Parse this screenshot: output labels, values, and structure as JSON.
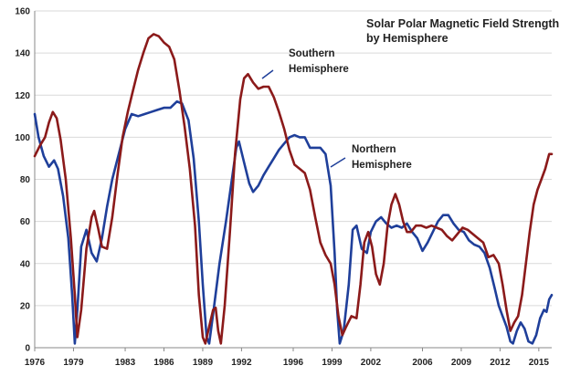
{
  "chart_data": {
    "type": "line",
    "title": [
      "Solar Polar Magnetic Field Strength",
      "by Hemisphere"
    ],
    "xlabel": "",
    "ylabel": "",
    "xlim": [
      1976,
      2016
    ],
    "ylim": [
      0,
      160
    ],
    "x_ticks": [
      1976,
      1979,
      1983,
      1986,
      1989,
      1992,
      1996,
      1999,
      2002,
      2006,
      2009,
      2012,
      2015
    ],
    "y_ticks": [
      0,
      20,
      40,
      60,
      80,
      100,
      120,
      140,
      160
    ],
    "grid": "horizontal",
    "series": [
      {
        "name": "Northern Hemisphere",
        "color": "#1f3f9a",
        "label_lines": [
          "Northern",
          "Hemisphere"
        ],
        "points": [
          [
            1976.0,
            111
          ],
          [
            1976.3,
            100
          ],
          [
            1976.7,
            91
          ],
          [
            1977.1,
            86
          ],
          [
            1977.5,
            89
          ],
          [
            1977.8,
            85
          ],
          [
            1978.2,
            72
          ],
          [
            1978.6,
            52
          ],
          [
            1978.9,
            25
          ],
          [
            1979.1,
            2
          ],
          [
            1979.3,
            18
          ],
          [
            1979.6,
            48
          ],
          [
            1980.0,
            56
          ],
          [
            1980.4,
            45
          ],
          [
            1980.8,
            41
          ],
          [
            1981.2,
            52
          ],
          [
            1981.6,
            67
          ],
          [
            1982.0,
            80
          ],
          [
            1982.5,
            92
          ],
          [
            1983.0,
            104
          ],
          [
            1983.5,
            111
          ],
          [
            1984.0,
            110
          ],
          [
            1984.5,
            111
          ],
          [
            1985.0,
            112
          ],
          [
            1985.5,
            113
          ],
          [
            1986.0,
            114
          ],
          [
            1986.5,
            114
          ],
          [
            1987.0,
            117
          ],
          [
            1987.4,
            116
          ],
          [
            1987.9,
            108
          ],
          [
            1988.3,
            90
          ],
          [
            1988.7,
            60
          ],
          [
            1989.0,
            30
          ],
          [
            1989.3,
            5
          ],
          [
            1989.5,
            2
          ],
          [
            1989.8,
            16
          ],
          [
            1990.3,
            40
          ],
          [
            1990.8,
            60
          ],
          [
            1991.3,
            82
          ],
          [
            1991.6,
            95
          ],
          [
            1991.8,
            98
          ],
          [
            1992.2,
            88
          ],
          [
            1992.6,
            78
          ],
          [
            1992.9,
            74
          ],
          [
            1993.3,
            77
          ],
          [
            1993.7,
            82
          ],
          [
            1994.1,
            86
          ],
          [
            1994.5,
            90
          ],
          [
            1994.9,
            94
          ],
          [
            1995.3,
            97
          ],
          [
            1995.7,
            100
          ],
          [
            1996.1,
            101
          ],
          [
            1996.5,
            100
          ],
          [
            1996.9,
            100
          ],
          [
            1997.3,
            95
          ],
          [
            1997.7,
            95
          ],
          [
            1998.1,
            95
          ],
          [
            1998.5,
            92
          ],
          [
            1998.9,
            77
          ],
          [
            1999.2,
            45
          ],
          [
            1999.4,
            18
          ],
          [
            1999.6,
            2
          ],
          [
            1999.9,
            8
          ],
          [
            2000.3,
            30
          ],
          [
            2000.6,
            56
          ],
          [
            2000.9,
            58
          ],
          [
            2001.3,
            47
          ],
          [
            2001.7,
            45
          ],
          [
            2002.0,
            55
          ],
          [
            2002.4,
            60
          ],
          [
            2002.8,
            62
          ],
          [
            2003.2,
            59
          ],
          [
            2003.6,
            57
          ],
          [
            2004.0,
            58
          ],
          [
            2004.4,
            57
          ],
          [
            2004.8,
            59
          ],
          [
            2005.2,
            55
          ],
          [
            2005.6,
            52
          ],
          [
            2006.0,
            46
          ],
          [
            2006.4,
            50
          ],
          [
            2006.8,
            55
          ],
          [
            2007.2,
            60
          ],
          [
            2007.6,
            63
          ],
          [
            2008.0,
            63
          ],
          [
            2008.4,
            59
          ],
          [
            2008.8,
            56
          ],
          [
            2009.2,
            55
          ],
          [
            2009.6,
            51
          ],
          [
            2010.0,
            49
          ],
          [
            2010.4,
            48
          ],
          [
            2010.8,
            45
          ],
          [
            2011.2,
            38
          ],
          [
            2011.6,
            28
          ],
          [
            2011.9,
            20
          ],
          [
            2012.2,
            15
          ],
          [
            2012.5,
            10
          ],
          [
            2012.8,
            3
          ],
          [
            2013.0,
            2
          ],
          [
            2013.3,
            8
          ],
          [
            2013.6,
            12
          ],
          [
            2013.9,
            9
          ],
          [
            2014.2,
            3
          ],
          [
            2014.5,
            2
          ],
          [
            2014.8,
            6
          ],
          [
            2015.1,
            14
          ],
          [
            2015.4,
            18
          ],
          [
            2015.6,
            17
          ],
          [
            2015.8,
            23
          ],
          [
            2016.0,
            25
          ]
        ]
      },
      {
        "name": "Southern Hemisphere",
        "color": "#8b1a1a",
        "label_lines": [
          "Southern",
          "Hemisphere"
        ],
        "points": [
          [
            1976.0,
            91
          ],
          [
            1976.4,
            96
          ],
          [
            1976.8,
            100
          ],
          [
            1977.1,
            107
          ],
          [
            1977.4,
            112
          ],
          [
            1977.7,
            109
          ],
          [
            1978.0,
            99
          ],
          [
            1978.4,
            80
          ],
          [
            1978.8,
            52
          ],
          [
            1979.1,
            25
          ],
          [
            1979.3,
            5
          ],
          [
            1979.6,
            18
          ],
          [
            1980.0,
            47
          ],
          [
            1980.4,
            62
          ],
          [
            1980.6,
            65
          ],
          [
            1980.9,
            57
          ],
          [
            1981.2,
            48
          ],
          [
            1981.6,
            47
          ],
          [
            1982.0,
            62
          ],
          [
            1982.4,
            82
          ],
          [
            1982.8,
            100
          ],
          [
            1983.2,
            112
          ],
          [
            1983.6,
            122
          ],
          [
            1984.0,
            132
          ],
          [
            1984.4,
            140
          ],
          [
            1984.8,
            147
          ],
          [
            1985.2,
            149
          ],
          [
            1985.6,
            148
          ],
          [
            1986.0,
            145
          ],
          [
            1986.4,
            143
          ],
          [
            1986.8,
            137
          ],
          [
            1987.2,
            122
          ],
          [
            1987.6,
            105
          ],
          [
            1988.0,
            85
          ],
          [
            1988.4,
            58
          ],
          [
            1988.7,
            25
          ],
          [
            1989.0,
            5
          ],
          [
            1989.2,
            2
          ],
          [
            1989.5,
            10
          ],
          [
            1989.8,
            18
          ],
          [
            1990.0,
            19
          ],
          [
            1990.2,
            8
          ],
          [
            1990.4,
            2
          ],
          [
            1990.7,
            20
          ],
          [
            1991.1,
            55
          ],
          [
            1991.5,
            92
          ],
          [
            1991.9,
            118
          ],
          [
            1992.2,
            128
          ],
          [
            1992.5,
            130
          ],
          [
            1992.9,
            126
          ],
          [
            1993.3,
            123
          ],
          [
            1993.7,
            124
          ],
          [
            1994.1,
            124
          ],
          [
            1994.5,
            119
          ],
          [
            1994.9,
            112
          ],
          [
            1995.3,
            104
          ],
          [
            1995.7,
            94
          ],
          [
            1996.1,
            87
          ],
          [
            1996.5,
            85
          ],
          [
            1996.9,
            83
          ],
          [
            1997.3,
            75
          ],
          [
            1997.7,
            62
          ],
          [
            1998.1,
            50
          ],
          [
            1998.5,
            44
          ],
          [
            1998.9,
            40
          ],
          [
            1999.2,
            30
          ],
          [
            1999.5,
            15
          ],
          [
            1999.8,
            6
          ],
          [
            2000.1,
            10
          ],
          [
            2000.5,
            15
          ],
          [
            2000.9,
            14
          ],
          [
            2001.2,
            30
          ],
          [
            2001.5,
            50
          ],
          [
            2001.8,
            55
          ],
          [
            2002.1,
            48
          ],
          [
            2002.4,
            35
          ],
          [
            2002.7,
            30
          ],
          [
            2003.0,
            40
          ],
          [
            2003.3,
            58
          ],
          [
            2003.6,
            68
          ],
          [
            2003.9,
            73
          ],
          [
            2004.2,
            68
          ],
          [
            2004.5,
            60
          ],
          [
            2004.8,
            55
          ],
          [
            2005.1,
            55
          ],
          [
            2005.5,
            58
          ],
          [
            2005.9,
            58
          ],
          [
            2006.3,
            57
          ],
          [
            2006.7,
            58
          ],
          [
            2007.1,
            57
          ],
          [
            2007.5,
            56
          ],
          [
            2007.9,
            53
          ],
          [
            2008.3,
            51
          ],
          [
            2008.7,
            54
          ],
          [
            2009.1,
            57
          ],
          [
            2009.5,
            56
          ],
          [
            2009.9,
            54
          ],
          [
            2010.3,
            52
          ],
          [
            2010.7,
            50
          ],
          [
            2011.1,
            43
          ],
          [
            2011.5,
            44
          ],
          [
            2011.9,
            40
          ],
          [
            2012.2,
            30
          ],
          [
            2012.5,
            18
          ],
          [
            2012.8,
            8
          ],
          [
            2013.1,
            12
          ],
          [
            2013.4,
            15
          ],
          [
            2013.7,
            25
          ],
          [
            2014.0,
            40
          ],
          [
            2014.3,
            55
          ],
          [
            2014.6,
            68
          ],
          [
            2014.9,
            75
          ],
          [
            2015.2,
            80
          ],
          [
            2015.5,
            85
          ],
          [
            2015.8,
            92
          ],
          [
            2016.0,
            92
          ]
        ]
      }
    ]
  }
}
